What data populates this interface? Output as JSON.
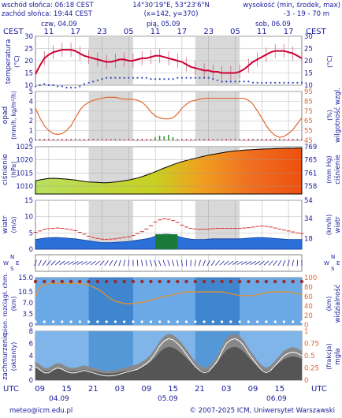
{
  "header": {
    "sunrise": "wschód słońca: 06:18 CEST",
    "sunset": "zachód słońca: 19:44 CEST",
    "coords": "14°30'19\"E, 53°23'6\"N",
    "grid": "(x=142, y=370)",
    "elevation_title": "wysokość (min, środek, max)",
    "elevation_values": "-3 - 19 - 70 m"
  },
  "timeline": {
    "tz_label": "CEST",
    "days": [
      "czw, 04.09",
      "pią, 05.09",
      "sob, 06.09"
    ],
    "top_hours": [
      "11",
      "17",
      "23",
      "05",
      "11",
      "17",
      "23",
      "05",
      "11",
      "17"
    ],
    "utc_label": "UTC",
    "bottom_hours": [
      "09",
      "15",
      "21",
      "03",
      "09",
      "15",
      "21",
      "03",
      "09",
      "15"
    ],
    "bottom_days": [
      "04.09",
      "05.09",
      "06.09"
    ]
  },
  "colors": {
    "ink": "#1a1a9c",
    "temperature": "#cc0033",
    "dewpoint": "#3344bb",
    "humidity": "#e0662a",
    "precip": "#2e9a2e",
    "wind_fill": "#2b6fd8",
    "gust": "#d83030",
    "cloud_dark": "#555555",
    "fog": "#ffffff",
    "panel_night": "#d8d8d8",
    "panel_blue": "#6aa9e6"
  },
  "panels": {
    "temperature": {
      "left_label": "temperatura",
      "left_unit": "(°C)",
      "right_unit": "(°C)"
    },
    "precip": {
      "left_label": "opad",
      "left_unit": "(mm/h, kg/m²/h)",
      "right_label": "wilgotność wzgl.",
      "right_unit": "(%)"
    },
    "pressure": {
      "left_label": "ciśnienie",
      "left_unit": "(hPa)",
      "right_label": "ciśnienie",
      "right_unit": "(mm Hg)"
    },
    "wind": {
      "left_label": "wiatr",
      "left_unit": "(m/s)",
      "right_label": "wiatr",
      "right_unit": "(km/h)"
    },
    "wind_dir": {
      "compass_letters": [
        "N",
        "S",
        "W",
        "E"
      ]
    },
    "cloud_base": {
      "left_label": "pion. rozciągł. chm.",
      "left_unit": "(km)",
      "right_label": "widzialność",
      "right_unit": "(km)"
    },
    "cloud_cover": {
      "left_label": "zachmurzenie",
      "left_unit": "(oktanty)",
      "right_label": "mgła",
      "right_unit": "(frakcja)"
    }
  },
  "footer": {
    "email": "meteo@icm.edu.pl",
    "copyright": "© 2007-2025 ICM, Uniwersytet Warszawski"
  },
  "chart_data": [
    {
      "type": "line",
      "title": "temperatura",
      "x": [
        8,
        9,
        10,
        11,
        12,
        13,
        14,
        15,
        16,
        17,
        18,
        19,
        20,
        21,
        22,
        23,
        0,
        1,
        2,
        3,
        4,
        5,
        6,
        7,
        8,
        9,
        10,
        11,
        12,
        13,
        14,
        15,
        16,
        17,
        18,
        19,
        20,
        21,
        22,
        23,
        0,
        1,
        2,
        3,
        4,
        5,
        6,
        7,
        8,
        9,
        10,
        11,
        12,
        13,
        14,
        15,
        16,
        17,
        18,
        19,
        20
      ],
      "series": [
        {
          "values": [
            14.5,
            18,
            21,
            22.5,
            23.5,
            24,
            24.5,
            24.5,
            24.5,
            24,
            23,
            22,
            21.5,
            21,
            20.5,
            20,
            19.5,
            19.5,
            20,
            20.5,
            20.5,
            20,
            20,
            20.5,
            21,
            21,
            21.5,
            22,
            22,
            21.5,
            21,
            20.5,
            20,
            19.5,
            18.5,
            17.5,
            17,
            16.5,
            16,
            16,
            15.5,
            15.5,
            15,
            15,
            15,
            15,
            15.5,
            16.5,
            18,
            19.5,
            20.5,
            21.5,
            22.5,
            23.5,
            24,
            24,
            24,
            23.5,
            23,
            22,
            21
          ]
        },
        {
          "values": [
            9.5,
            10,
            10.5,
            10,
            10,
            9.5,
            9.5,
            9,
            9,
            9,
            9.5,
            10.5,
            11,
            11.5,
            12,
            12.5,
            13,
            13,
            13,
            13,
            13,
            13,
            13,
            13,
            13,
            13,
            12.5,
            12.5,
            12.5,
            12.5,
            12.5,
            12.5,
            13,
            13,
            13,
            13,
            13,
            13,
            13,
            13,
            12.5,
            12,
            11.5,
            11.5,
            11.5,
            11.5,
            11.5,
            11.5,
            11.5,
            11,
            11,
            11,
            11,
            11,
            11,
            11,
            11,
            11,
            11,
            11,
            11
          ]
        }
      ],
      "ylim": [
        10,
        30
      ],
      "right_ylim": [
        10,
        30
      ],
      "yticks": [
        10,
        15,
        20,
        25,
        30
      ]
    },
    {
      "type": "line",
      "title": "opad / wilgotność wzgl.",
      "x": [
        8,
        9,
        10,
        11,
        12,
        13,
        14,
        15,
        16,
        17,
        18,
        19,
        20,
        21,
        22,
        23,
        0,
        1,
        2,
        3,
        4,
        5,
        6,
        7,
        8,
        9,
        10,
        11,
        12,
        13,
        14,
        15,
        16,
        17,
        18,
        19,
        20,
        21,
        22,
        23,
        0,
        1,
        2,
        3,
        4,
        5,
        6,
        7,
        8,
        9,
        10,
        11,
        12,
        13,
        14,
        15,
        16,
        17,
        18,
        19,
        20
      ],
      "series": [
        {
          "values": [
            0,
            0,
            0,
            0,
            0,
            0,
            0,
            0,
            0,
            0,
            0,
            0,
            0,
            0,
            0,
            0,
            0,
            0,
            0,
            0,
            0,
            0,
            0,
            0,
            0,
            0,
            0,
            0,
            0,
            0,
            0,
            0,
            0,
            0,
            0,
            0,
            0,
            0,
            0,
            0,
            0,
            0,
            0,
            0,
            0,
            0,
            0,
            0,
            0,
            0,
            0,
            0,
            0,
            0,
            0,
            0,
            0,
            0,
            0,
            0,
            0
          ]
        },
        {
          "values": [
            78,
            68,
            60,
            55,
            52,
            51,
            52,
            55,
            60,
            68,
            76,
            81,
            84,
            86,
            87,
            88,
            89,
            89,
            89,
            88,
            87,
            87,
            87,
            86,
            84,
            80,
            74,
            70,
            68,
            67,
            67,
            68,
            72,
            78,
            82,
            85,
            86,
            87,
            88,
            88,
            88,
            88,
            88,
            88,
            88,
            88,
            88,
            88,
            86,
            82,
            75,
            68,
            60,
            54,
            50,
            48,
            49,
            52,
            56,
            62,
            68
          ]
        }
      ],
      "ylim": [
        0,
        5
      ],
      "right_ylim": [
        45,
        95
      ],
      "yticks": [
        0,
        1,
        2,
        3,
        4,
        5
      ],
      "right_yticks": [
        45,
        55,
        65,
        75,
        85,
        95
      ]
    },
    {
      "type": "area",
      "title": "ciśnienie",
      "x": [
        8,
        9,
        10,
        11,
        12,
        13,
        14,
        15,
        16,
        17,
        18,
        19,
        20,
        21,
        22,
        23,
        0,
        1,
        2,
        3,
        4,
        5,
        6,
        7,
        8,
        9,
        10,
        11,
        12,
        13,
        14,
        15,
        16,
        17,
        18,
        19,
        20,
        21,
        22,
        23,
        0,
        1,
        2,
        3,
        4,
        5,
        6,
        7,
        8,
        9,
        10,
        11,
        12,
        13,
        14,
        15,
        16,
        17,
        18,
        19,
        20
      ],
      "series": [
        {
          "values": [
            1012,
            1012.4,
            1012.7,
            1012.9,
            1013,
            1012.9,
            1012.8,
            1012.7,
            1012.5,
            1012.3,
            1012,
            1011.8,
            1011.6,
            1011.5,
            1011.4,
            1011.3,
            1011.3,
            1011.4,
            1011.6,
            1011.8,
            1012,
            1012.3,
            1012.7,
            1013.1,
            1013.6,
            1014.2,
            1014.8,
            1015.5,
            1016.2,
            1016.9,
            1017.5,
            1018.2,
            1018.8,
            1019.3,
            1019.8,
            1020.2,
            1020.6,
            1021,
            1021.4,
            1021.8,
            1022.1,
            1022.4,
            1022.7,
            1023,
            1023.2,
            1023.4,
            1023.5,
            1023.7,
            1023.8,
            1023.9,
            1024,
            1024.1,
            1024.2,
            1024.2,
            1024.3,
            1024.3,
            1024.4,
            1024.4,
            1024.4,
            1024.5,
            1024.5
          ]
        }
      ],
      "ylim": [
        1007,
        1025
      ],
      "yticks": [
        1010,
        1015,
        1020,
        1025
      ],
      "right_yticks": [
        758,
        761,
        765,
        769
      ]
    },
    {
      "type": "area",
      "title": "wiatr",
      "x": [
        8,
        9,
        10,
        11,
        12,
        13,
        14,
        15,
        16,
        17,
        18,
        19,
        20,
        21,
        22,
        23,
        0,
        1,
        2,
        3,
        4,
        5,
        6,
        7,
        8,
        9,
        10,
        11,
        12,
        13,
        14,
        15,
        16,
        17,
        18,
        19,
        20,
        21,
        22,
        23,
        0,
        1,
        2,
        3,
        4,
        5,
        6,
        7,
        8,
        9,
        10,
        11,
        12,
        13,
        14,
        15,
        16,
        17,
        18,
        19,
        20
      ],
      "series": [
        {
          "values": [
            3,
            3.2,
            3.4,
            3.5,
            3.6,
            3.6,
            3.5,
            3.4,
            3.3,
            3.2,
            3,
            2.8,
            2.6,
            2.4,
            2.2,
            2,
            2,
            2,
            2.1,
            2.2,
            2.3,
            2.4,
            2.6,
            2.8,
            3,
            3.2,
            3.5,
            4,
            4.4,
            4.6,
            4.6,
            4.4,
            4,
            3.6,
            3.3,
            3.1,
            3,
            3,
            3,
            3.1,
            3.2,
            3.2,
            3.2,
            3.2,
            3.2,
            3.2,
            3.2,
            3.3,
            3.4,
            3.5,
            3.6,
            3.6,
            3.5,
            3.4,
            3.3,
            3.2,
            3.1,
            3,
            3,
            3,
            3
          ]
        },
        {
          "values": [
            5.2,
            5.6,
            6.1,
            6.3,
            6.4,
            6.5,
            6.4,
            6.2,
            6,
            5.7,
            5.2,
            4.6,
            4,
            3.6,
            3.3,
            3.1,
            3,
            3.1,
            3.2,
            3.4,
            3.6,
            3.8,
            4.2,
            4.8,
            5.4,
            6.2,
            7.2,
            8.3,
            9,
            9.3,
            9.2,
            8.8,
            8.2,
            7.4,
            6.8,
            6.4,
            6.2,
            6.1,
            6.1,
            6.2,
            6.3,
            6.4,
            6.4,
            6.4,
            6.4,
            6.4,
            6.4,
            6.5,
            6.6,
            6.8,
            7,
            7.1,
            7,
            6.8,
            6.5,
            6.2,
            5.9,
            5.6,
            5.3,
            5,
            4.8
          ]
        }
      ],
      "ylim": [
        0,
        15
      ],
      "yticks": [
        0,
        5,
        10,
        15
      ],
      "right_yticks": [
        18,
        34,
        54
      ]
    },
    {
      "type": "scatter",
      "title": "pion. rozciągł. chm. / widzialność",
      "x": [
        8,
        9,
        10,
        11,
        12,
        13,
        14,
        15,
        16,
        17,
        18,
        19,
        20,
        21,
        22,
        23,
        0,
        1,
        2,
        3,
        4,
        5,
        6,
        7,
        8,
        9,
        10,
        11,
        12,
        13,
        14,
        15,
        16,
        17,
        18,
        19,
        20,
        21,
        22,
        23,
        0,
        1,
        2,
        3,
        4,
        5,
        6,
        7,
        8,
        9,
        10,
        11,
        12,
        13,
        14,
        15,
        16,
        17,
        18,
        19,
        20
      ],
      "series": [
        {
          "values": [
            60,
            80,
            85,
            87,
            88,
            88,
            88,
            88,
            88,
            88,
            87,
            86,
            84,
            80,
            76,
            70,
            62,
            55,
            50,
            48,
            45,
            45,
            45,
            46,
            48,
            50,
            52,
            55,
            58,
            60,
            62,
            64,
            66,
            68,
            70,
            70,
            70,
            70,
            70,
            70,
            70,
            70,
            70,
            68,
            66,
            64,
            62,
            62,
            62,
            62,
            64,
            66,
            68,
            70,
            70,
            70,
            70,
            70,
            68,
            66,
            64
          ]
        }
      ],
      "ylim": [
        0,
        15
      ],
      "yticks": [
        0,
        3.5,
        7.0,
        10.5,
        15.0
      ],
      "right_ylim": [
        0,
        100
      ],
      "right_yticks": [
        0,
        20,
        40,
        60,
        80,
        100
      ]
    },
    {
      "type": "area",
      "title": "zachmurzenie / mgła",
      "x": [
        8,
        9,
        10,
        11,
        12,
        13,
        14,
        15,
        16,
        17,
        18,
        19,
        20,
        21,
        22,
        23,
        0,
        1,
        2,
        3,
        4,
        5,
        6,
        7,
        8,
        9,
        10,
        11,
        12,
        13,
        14,
        15,
        16,
        17,
        18,
        19,
        20,
        21,
        22,
        23,
        0,
        1,
        2,
        3,
        4,
        5,
        6,
        7,
        8,
        9,
        10,
        11,
        12,
        13,
        14,
        15,
        16,
        17,
        18,
        19,
        20
      ],
      "series": [
        {
          "values": [
            3,
            2.5,
            2,
            2,
            2.5,
            2.8,
            2.6,
            2.2,
            2,
            2,
            2.2,
            2.4,
            2.2,
            2,
            1.8,
            1.6,
            1.5,
            1.5,
            1.6,
            1.8,
            2,
            2.2,
            2.4,
            2.6,
            3,
            3.5,
            4.2,
            5.2,
            6.4,
            7.2,
            7.6,
            7.4,
            6.8,
            6,
            5,
            4,
            3,
            2.4,
            2,
            2.2,
            3,
            4,
            5.5,
            6.8,
            7.4,
            7.6,
            7.2,
            6.4,
            5.2,
            4.2,
            3.2,
            2.4,
            2,
            2.4,
            3.2,
            4,
            4.8,
            5.2,
            5.4,
            5.2,
            4.8
          ]
        },
        {
          "values": [
            0,
            0,
            0,
            0,
            0,
            0,
            0,
            0,
            0,
            0,
            0,
            0,
            0,
            0,
            0,
            0,
            0,
            0,
            0,
            0,
            0,
            0,
            0,
            0,
            0,
            0,
            0,
            0,
            0,
            0,
            0,
            0,
            0,
            0,
            0,
            0,
            0,
            0,
            0,
            0,
            0,
            0,
            0,
            0,
            0,
            0,
            0,
            0,
            0,
            0,
            0,
            0,
            0,
            0,
            0,
            0,
            0,
            0,
            0,
            0,
            0
          ]
        }
      ],
      "ylim": [
        0,
        8
      ],
      "yticks": [
        0,
        2,
        4,
        6,
        8
      ],
      "right_ylim": [
        0,
        1
      ],
      "right_yticks": [
        0,
        0.25,
        0.5,
        0.75,
        1
      ]
    }
  ]
}
